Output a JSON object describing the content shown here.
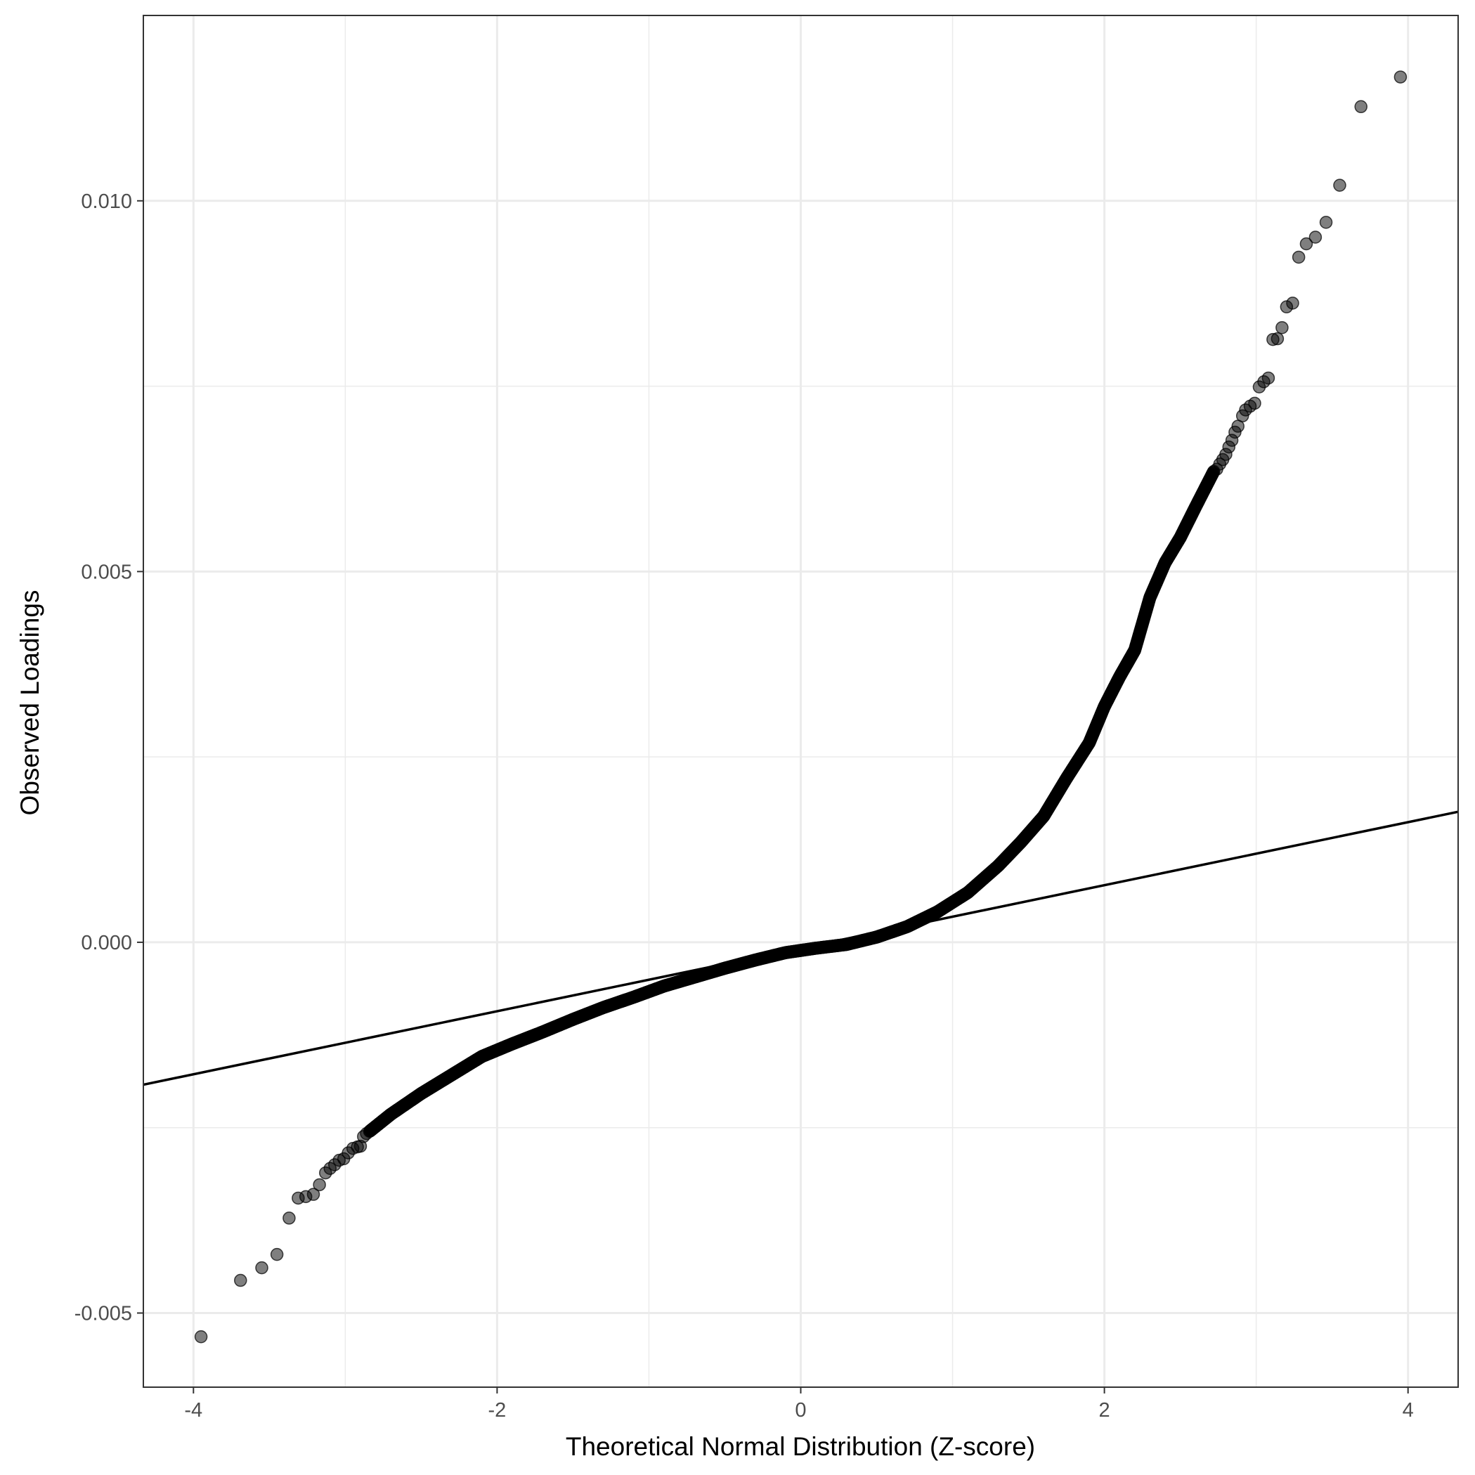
{
  "chart_data": {
    "type": "scatter",
    "subtype": "qq-plot",
    "title": "",
    "xlabel": "Theoretical Normal Distribution (Z-score)",
    "ylabel": "Observed Loadings",
    "xlim": [
      -4.33,
      4.33
    ],
    "ylim": [
      -0.006,
      0.0125
    ],
    "x_ticks": [
      {
        "value": -4,
        "label": "-4"
      },
      {
        "value": -2,
        "label": "-2"
      },
      {
        "value": 0,
        "label": "0"
      },
      {
        "value": 2,
        "label": "2"
      },
      {
        "value": 4,
        "label": "4"
      }
    ],
    "y_ticks": [
      {
        "value": -0.005,
        "label": "-0.005"
      },
      {
        "value": 0.0,
        "label": "0.000"
      },
      {
        "value": 0.005,
        "label": "0.005"
      },
      {
        "value": 0.01,
        "label": "0.010"
      }
    ],
    "x_minor_ticks": [
      -3,
      -1,
      1,
      3
    ],
    "y_minor_ticks": [
      -0.0025,
      0.0025,
      0.0075
    ],
    "grid": true,
    "theme": "bw",
    "reference_line": {
      "intercept": -8e-05,
      "slope": 0.000425
    },
    "tail_points": [
      {
        "x": -3.95,
        "y": -0.00532
      },
      {
        "x": -3.69,
        "y": -0.00456
      },
      {
        "x": -3.55,
        "y": -0.00439
      },
      {
        "x": -3.45,
        "y": -0.00421
      },
      {
        "x": -3.37,
        "y": -0.00372
      },
      {
        "x": -3.31,
        "y": -0.00345
      },
      {
        "x": -3.26,
        "y": -0.00343
      },
      {
        "x": -3.21,
        "y": -0.0034
      },
      {
        "x": -3.17,
        "y": -0.00327
      },
      {
        "x": -3.13,
        "y": -0.00311
      },
      {
        "x": -3.1,
        "y": -0.00305
      },
      {
        "x": -3.07,
        "y": -0.003
      },
      {
        "x": -3.04,
        "y": -0.00294
      },
      {
        "x": -3.01,
        "y": -0.00292
      },
      {
        "x": -2.98,
        "y": -0.00284
      },
      {
        "x": -2.95,
        "y": -0.00278
      },
      {
        "x": -2.92,
        "y": -0.00276
      },
      {
        "x": -2.9,
        "y": -0.00275
      },
      {
        "x": -2.88,
        "y": -0.00262
      },
      {
        "x": -2.86,
        "y": -0.00258
      },
      {
        "x": 2.74,
        "y": 0.00638
      },
      {
        "x": 2.76,
        "y": 0.00645
      },
      {
        "x": 2.78,
        "y": 0.00651
      },
      {
        "x": 2.8,
        "y": 0.00658
      },
      {
        "x": 2.82,
        "y": 0.00668
      },
      {
        "x": 2.84,
        "y": 0.00677
      },
      {
        "x": 2.86,
        "y": 0.00688
      },
      {
        "x": 2.88,
        "y": 0.00696
      },
      {
        "x": 2.91,
        "y": 0.0071
      },
      {
        "x": 2.93,
        "y": 0.00718
      },
      {
        "x": 2.96,
        "y": 0.00723
      },
      {
        "x": 2.99,
        "y": 0.00727
      },
      {
        "x": 3.02,
        "y": 0.00749
      },
      {
        "x": 3.05,
        "y": 0.00756
      },
      {
        "x": 3.08,
        "y": 0.00761
      },
      {
        "x": 3.11,
        "y": 0.00813
      },
      {
        "x": 3.14,
        "y": 0.00814
      },
      {
        "x": 3.17,
        "y": 0.00829
      },
      {
        "x": 3.2,
        "y": 0.00857
      },
      {
        "x": 3.24,
        "y": 0.00862
      },
      {
        "x": 3.28,
        "y": 0.00924
      },
      {
        "x": 3.33,
        "y": 0.00942
      },
      {
        "x": 3.39,
        "y": 0.00951
      },
      {
        "x": 3.46,
        "y": 0.00971
      },
      {
        "x": 3.55,
        "y": 0.01021
      },
      {
        "x": 3.69,
        "y": 0.01127
      },
      {
        "x": 3.95,
        "y": 0.01167
      }
    ],
    "body_curve": [
      {
        "x": -2.84,
        "y": -0.00255
      },
      {
        "x": -2.7,
        "y": -0.00232
      },
      {
        "x": -2.5,
        "y": -0.00204
      },
      {
        "x": -2.3,
        "y": -0.00179
      },
      {
        "x": -2.1,
        "y": -0.00154
      },
      {
        "x": -1.9,
        "y": -0.00137
      },
      {
        "x": -1.7,
        "y": -0.00121
      },
      {
        "x": -1.5,
        "y": -0.00104
      },
      {
        "x": -1.3,
        "y": -0.00088
      },
      {
        "x": -1.1,
        "y": -0.00074
      },
      {
        "x": -0.9,
        "y": -0.00059
      },
      {
        "x": -0.7,
        "y": -0.00047
      },
      {
        "x": -0.5,
        "y": -0.00035
      },
      {
        "x": -0.3,
        "y": -0.00024
      },
      {
        "x": -0.1,
        "y": -0.00014
      },
      {
        "x": 0.1,
        "y": -8e-05
      },
      {
        "x": 0.3,
        "y": -3e-05
      },
      {
        "x": 0.5,
        "y": 7e-05
      },
      {
        "x": 0.7,
        "y": 0.00021
      },
      {
        "x": 0.9,
        "y": 0.00041
      },
      {
        "x": 1.1,
        "y": 0.00067
      },
      {
        "x": 1.3,
        "y": 0.00103
      },
      {
        "x": 1.45,
        "y": 0.00135
      },
      {
        "x": 1.6,
        "y": 0.0017
      },
      {
        "x": 1.75,
        "y": 0.00221
      },
      {
        "x": 1.9,
        "y": 0.00269
      },
      {
        "x": 2.0,
        "y": 0.00318
      },
      {
        "x": 2.1,
        "y": 0.00358
      },
      {
        "x": 2.2,
        "y": 0.00394
      },
      {
        "x": 2.3,
        "y": 0.00465
      },
      {
        "x": 2.4,
        "y": 0.00512
      },
      {
        "x": 2.5,
        "y": 0.00546
      },
      {
        "x": 2.6,
        "y": 0.00587
      },
      {
        "x": 2.72,
        "y": 0.00635
      }
    ]
  }
}
